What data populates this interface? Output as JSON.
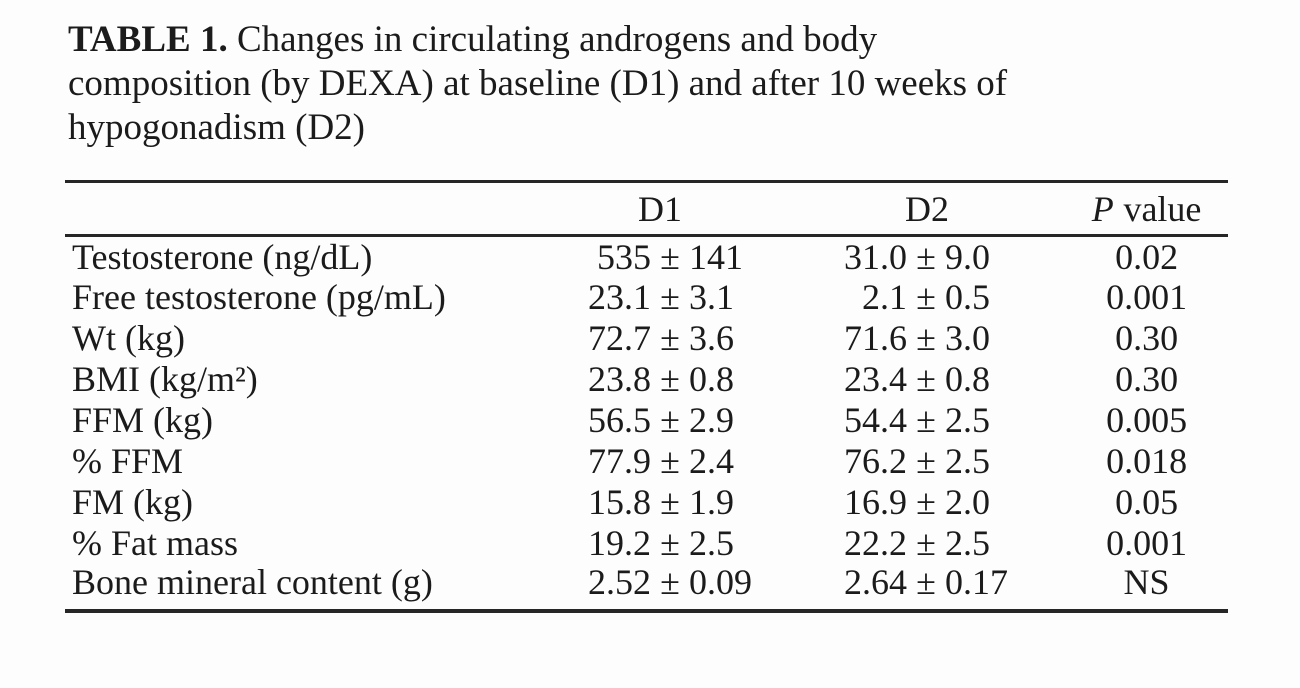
{
  "page": {
    "background": "#fdfdfd",
    "text_color": "#1b1b1b",
    "rule_color": "#262626"
  },
  "title": {
    "label_bold": "TABLE 1.",
    "line1_rest": " Changes in circulating androgens and body",
    "line2": "composition (by DEXA) at baseline (D1) and after 10 weeks of",
    "line3": "hypogonadism (D2)"
  },
  "table": {
    "pm": "±",
    "header": {
      "stub": "",
      "d1": "D1",
      "d2": "D2",
      "p_italic": "P",
      "p_rest": "value"
    },
    "rows": [
      {
        "label": "Testosterone (ng/dL)",
        "d1_mean": "535",
        "d1_sd": "141",
        "d2_mean": "31.0",
        "d2_sd": "9.0",
        "p": "0.02"
      },
      {
        "label": "Free testosterone (pg/mL)",
        "d1_mean": "23.1",
        "d1_sd": "3.1",
        "d2_mean": "2.1",
        "d2_sd": "0.5",
        "p": "0.001"
      },
      {
        "label": "Wt (kg)",
        "d1_mean": "72.7",
        "d1_sd": "3.6",
        "d2_mean": "71.6",
        "d2_sd": "3.0",
        "p": "0.30"
      },
      {
        "label": "BMI (kg/m²)",
        "d1_mean": "23.8",
        "d1_sd": "0.8",
        "d2_mean": "23.4",
        "d2_sd": "0.8",
        "p": "0.30"
      },
      {
        "label": "FFM (kg)",
        "d1_mean": "56.5",
        "d1_sd": "2.9",
        "d2_mean": "54.4",
        "d2_sd": "2.5",
        "p": "0.005"
      },
      {
        "label": "% FFM",
        "d1_mean": "77.9",
        "d1_sd": "2.4",
        "d2_mean": "76.2",
        "d2_sd": "2.5",
        "p": "0.018"
      },
      {
        "label": "FM (kg)",
        "d1_mean": "15.8",
        "d1_sd": "1.9",
        "d2_mean": "16.9",
        "d2_sd": "2.0",
        "p": "0.05"
      },
      {
        "label": "% Fat mass",
        "d1_mean": "19.2",
        "d1_sd": "2.5",
        "d2_mean": "22.2",
        "d2_sd": "2.5",
        "p": "0.001"
      },
      {
        "label": "Bone mineral content (g)",
        "d1_mean": "2.52",
        "d1_sd": "0.09",
        "d2_mean": "2.64",
        "d2_sd": "0.17",
        "p": "NS"
      }
    ]
  }
}
